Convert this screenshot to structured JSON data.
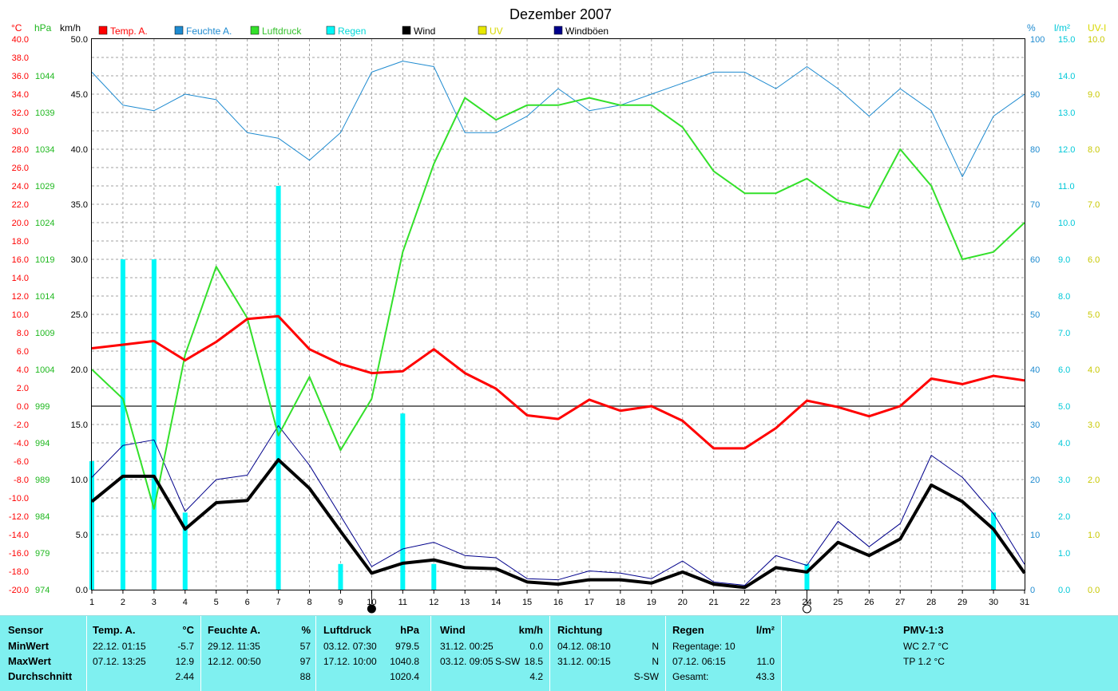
{
  "title": "Dezember 2007",
  "colors": {
    "temp": "#ff0000",
    "humidity": "#1f8bd0",
    "pressure": "#33e02a",
    "rain": "#00f8f8",
    "wind": "#000000",
    "uv": "#e8e800",
    "gust": "#00008b",
    "grid": "#a0a0a0",
    "panel": "#7ff0f0"
  },
  "axes": {
    "temp_unit": "°C",
    "pressure_unit": "hPa",
    "wind_unit": "km/h",
    "humidity_unit": "%",
    "rain_unit": "l/m²",
    "uv_unit": "UV-I"
  },
  "legend": [
    {
      "label": "Temp. A.",
      "color": "#ff0000",
      "text_color": "#ff0000"
    },
    {
      "label": "Feuchte A.",
      "color": "#1f8bd0",
      "text_color": "#1f8bd0"
    },
    {
      "label": "Luftdruck",
      "color": "#33e02a",
      "text_color": "#33c02a"
    },
    {
      "label": "Regen",
      "color": "#00f8f8",
      "text_color": "#00d8d8"
    },
    {
      "label": "Wind",
      "color": "#000000",
      "text_color": "#000000"
    },
    {
      "label": "UV",
      "color": "#e8e800",
      "text_color": "#d8d800"
    },
    {
      "label": "Windböen",
      "color": "#00008b",
      "text_color": "#000000"
    }
  ],
  "chart_data": {
    "type": "line",
    "title": "Dezember 2007",
    "x": [
      1,
      2,
      3,
      4,
      5,
      6,
      7,
      8,
      9,
      10,
      11,
      12,
      13,
      14,
      15,
      16,
      17,
      18,
      19,
      20,
      21,
      22,
      23,
      24,
      25,
      26,
      27,
      28,
      29,
      30,
      31
    ],
    "x_ticks": [
      "1",
      "2",
      "3",
      "4",
      "5",
      "6",
      "7",
      "8",
      "9",
      "10",
      "11",
      "12",
      "13",
      "14",
      "15",
      "16",
      "17",
      "18",
      "19",
      "20",
      "21",
      "22",
      "23",
      "24",
      "25",
      "26",
      "27",
      "28",
      "29",
      "30",
      "31"
    ],
    "axes": {
      "temp": {
        "ylim": [
          -20,
          40
        ],
        "ticks": [
          "40.0",
          "38.0",
          "36.0",
          "34.0",
          "32.0",
          "30.0",
          "28.0",
          "26.0",
          "24.0",
          "22.0",
          "20.0",
          "18.0",
          "16.0",
          "14.0",
          "12.0",
          "10.0",
          "8.0",
          "6.0",
          "4.0",
          "2.0",
          "0.0",
          "-2.0",
          "-4.0",
          "-6.0",
          "-8.0",
          "-10.0",
          "-12.0",
          "-14.0",
          "-16.0",
          "-18.0",
          "-20.0"
        ]
      },
      "pressure": {
        "ylim": [
          974,
          1049
        ],
        "ticks": [
          "1044",
          "1039",
          "1034",
          "1029",
          "1024",
          "1019",
          "1014",
          "1009",
          "1004",
          "999",
          "994",
          "989",
          "984",
          "979",
          "974"
        ]
      },
      "wind": {
        "ylim": [
          0,
          50
        ],
        "ticks": [
          "50.0",
          "45.0",
          "40.0",
          "35.0",
          "30.0",
          "25.0",
          "20.0",
          "15.0",
          "10.0",
          "5.0",
          "0.0"
        ]
      },
      "humidity": {
        "ylim": [
          0,
          100
        ],
        "ticks": [
          "100",
          "90",
          "80",
          "70",
          "60",
          "50",
          "40",
          "30",
          "20",
          "10",
          "0"
        ]
      },
      "rain": {
        "ylim": [
          0,
          15
        ],
        "ticks": [
          "15.0",
          "14.0",
          "13.0",
          "12.0",
          "11.0",
          "10.0",
          "9.0",
          "8.0",
          "7.0",
          "6.0",
          "5.0",
          "4.0",
          "3.0",
          "2.0",
          "1.0",
          "0.0"
        ]
      },
      "uv": {
        "ylim": [
          0,
          10
        ],
        "ticks": [
          "10.0",
          "9.0",
          "8.0",
          "7.0",
          "6.0",
          "5.0",
          "4.0",
          "3.0",
          "2.0",
          "1.0",
          "0.0"
        ]
      }
    },
    "series": [
      {
        "name": "Temp. A.",
        "axis": "temp",
        "values": [
          6.3,
          6.7,
          7.1,
          5.0,
          7.0,
          9.5,
          9.8,
          6.2,
          4.6,
          3.6,
          3.8,
          6.2,
          3.6,
          1.9,
          -1.0,
          -1.4,
          0.7,
          -0.5,
          0.0,
          -1.6,
          -4.6,
          -4.6,
          -2.4,
          0.6,
          -0.1,
          -1.1,
          0.0,
          3.0,
          2.4,
          3.3,
          2.8
        ]
      },
      {
        "name": "Feuchte A.",
        "axis": "humidity",
        "values": [
          94,
          88,
          87,
          90,
          89,
          83,
          82,
          78,
          83,
          94,
          96,
          95,
          83,
          83,
          86,
          91,
          87,
          88,
          90,
          92,
          94,
          94,
          91,
          95,
          91,
          86,
          91,
          87,
          75,
          86,
          90
        ]
      },
      {
        "name": "Luftdruck",
        "axis": "pressure",
        "values": [
          1004,
          1000,
          985,
          1006,
          1018,
          1011,
          995,
          1003,
          993,
          1000,
          1020,
          1032,
          1041,
          1038,
          1040,
          1040,
          1041,
          1040,
          1040,
          1037,
          1031,
          1028,
          1028,
          1030,
          1027,
          1026,
          1034,
          1029,
          1019,
          1020,
          1024
        ]
      },
      {
        "name": "Regen",
        "axis": "rain",
        "type": "bar",
        "values": [
          3.5,
          9.0,
          9.0,
          2.1,
          0,
          0,
          11.0,
          0,
          0.7,
          0,
          4.8,
          0.7,
          0,
          0,
          0,
          0,
          0,
          0,
          0,
          0,
          0,
          0,
          0,
          0.7,
          0,
          0,
          0,
          0,
          0,
          2.1,
          0
        ]
      },
      {
        "name": "Wind",
        "axis": "wind",
        "values": [
          8.0,
          10.3,
          10.3,
          5.5,
          7.9,
          8.1,
          11.8,
          9.2,
          5.3,
          1.5,
          2.4,
          2.7,
          2.0,
          1.9,
          0.7,
          0.5,
          0.9,
          0.9,
          0.6,
          1.6,
          0.5,
          0.2,
          2.0,
          1.6,
          4.3,
          3.1,
          4.6,
          9.5,
          8.0,
          5.5,
          1.5
        ]
      },
      {
        "name": "Windböen",
        "axis": "wind",
        "values": [
          10.2,
          13.1,
          13.6,
          7.1,
          10.0,
          10.4,
          14.9,
          11.3,
          6.7,
          2.1,
          3.7,
          4.3,
          3.1,
          2.9,
          1.0,
          0.9,
          1.7,
          1.5,
          1.0,
          2.6,
          0.7,
          0.4,
          3.1,
          2.2,
          6.2,
          3.9,
          6.0,
          12.2,
          10.2,
          6.9,
          2.3
        ]
      }
    ],
    "grid": true,
    "zero_line": "temp",
    "markers": [
      {
        "day": 10,
        "symbol": "new-moon"
      },
      {
        "day": 24,
        "symbol": "full-moon"
      }
    ]
  },
  "table": {
    "sensor": {
      "header": "Sensor",
      "rows": [
        "MinWert",
        "MaxWert",
        "Durchschnitt"
      ]
    },
    "temp": {
      "header": "Temp. A.",
      "unit": "°C",
      "rows": [
        [
          "22.12.  01:15",
          "-5.7"
        ],
        [
          "07.12.  13:25",
          "12.9"
        ],
        [
          "",
          "2.44"
        ]
      ]
    },
    "humidity": {
      "header": "Feuchte A.",
      "unit": "%",
      "rows": [
        [
          "29.12.  11:35",
          "57"
        ],
        [
          "12.12.  00:50",
          "97"
        ],
        [
          "",
          "88"
        ]
      ]
    },
    "pressure": {
      "header": "Luftdruck",
      "unit": "hPa",
      "rows": [
        [
          "03.12.  07:30",
          "979.5"
        ],
        [
          "17.12.  10:00",
          "1040.8"
        ],
        [
          "",
          "1020.4"
        ]
      ]
    },
    "wind": {
      "header": "Wind",
      "unit": "km/h",
      "rows": [
        [
          "31.12.  00:25",
          "",
          "0.0"
        ],
        [
          "03.12.  09:05",
          "S-SW",
          "18.5"
        ],
        [
          "",
          "",
          "4.2"
        ]
      ]
    },
    "direction": {
      "header": "Richtung",
      "rows": [
        [
          "04.12.  08:10",
          "N"
        ],
        [
          "31.12.  00:15",
          "N"
        ],
        [
          "",
          "S-SW"
        ]
      ]
    },
    "rain": {
      "header": "Regen",
      "unit": "l/m²",
      "rows": [
        [
          "Regentage: 10",
          ""
        ],
        [
          "07.12.  06:15",
          "11.0"
        ],
        [
          "Gesamt:",
          "43.3"
        ]
      ]
    },
    "pmv": {
      "header": "PMV-1:3",
      "rows": [
        "WC 2.7 °C",
        "TP 1.2 °C"
      ]
    }
  }
}
